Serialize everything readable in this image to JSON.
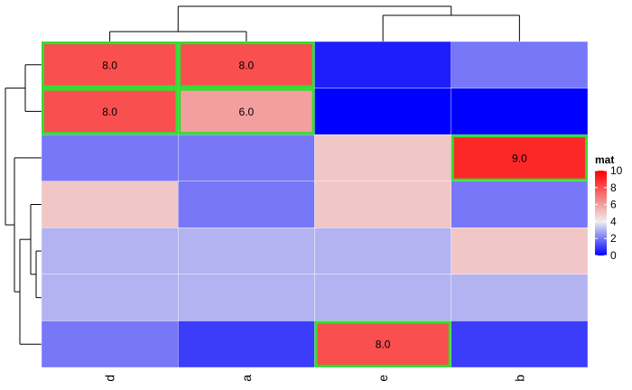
{
  "chart_data": {
    "type": "heatmap",
    "title": "",
    "xlabel": "",
    "ylabel": "",
    "columns": [
      "d",
      "a",
      "e",
      "b"
    ],
    "rows": [
      [
        8,
        8,
        0.5,
        2
      ],
      [
        8,
        6,
        0,
        0
      ],
      [
        2,
        2,
        5,
        9
      ],
      [
        5,
        2,
        5,
        2
      ],
      [
        3,
        3,
        3,
        5
      ],
      [
        3,
        3,
        3,
        3
      ],
      [
        2,
        1,
        8,
        1
      ]
    ],
    "cell_labels": [
      [
        "8.0",
        "8.0",
        "",
        ""
      ],
      [
        "8.0",
        "6.0",
        "",
        ""
      ],
      [
        "",
        "",
        "",
        "9.0"
      ],
      [
        "",
        "",
        "",
        ""
      ],
      [
        "",
        "",
        "",
        ""
      ],
      [
        "",
        "",
        "",
        ""
      ],
      [
        "",
        "",
        "8.0",
        ""
      ]
    ],
    "highlighted_cells": [
      [
        0,
        0
      ],
      [
        0,
        1
      ],
      [
        1,
        0
      ],
      [
        1,
        1
      ],
      [
        2,
        3
      ],
      [
        6,
        2
      ]
    ],
    "highlight_color": "#33dd33",
    "color_scale": {
      "name": "mat",
      "min": 0,
      "max": 10,
      "stops": [
        {
          "value": 0,
          "color": "#0000ff"
        },
        {
          "value": 4,
          "color": "#eeeeee"
        },
        {
          "value": 10,
          "color": "#ff0000"
        }
      ],
      "ticks": [
        "10",
        "8",
        "6",
        "4",
        "2",
        "0"
      ]
    },
    "dendrograms": [
      "top",
      "left"
    ]
  }
}
